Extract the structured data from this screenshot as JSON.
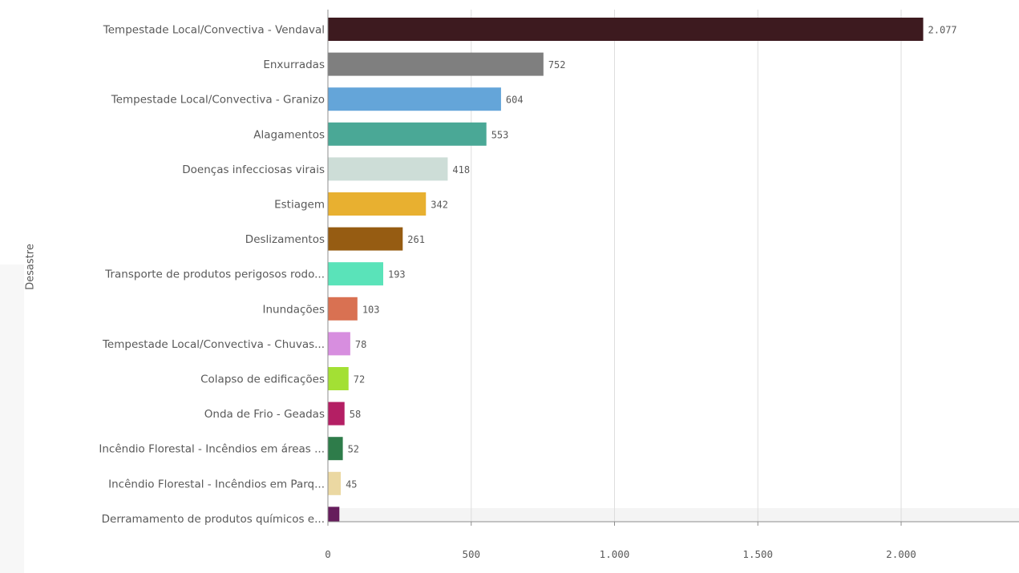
{
  "chart_data": {
    "type": "bar",
    "orientation": "horizontal",
    "ylabel": "Desastre",
    "xlim": [
      0,
      2400
    ],
    "x_ticks": [
      0,
      500,
      1000,
      1500,
      2000
    ],
    "x_tick_labels": [
      "0",
      "500",
      "1.000",
      "1.500",
      "2.000"
    ],
    "grid": true,
    "categories": [
      "Tempestade Local/Convectiva - Vendaval",
      "Enxurradas",
      "Tempestade Local/Convectiva - Granizo",
      "Alagamentos",
      "Doenças infecciosas virais",
      "Estiagem",
      "Deslizamentos",
      "Transporte de produtos perigosos rodo...",
      "Inundações",
      "Tempestade Local/Convectiva - Chuvas...",
      "Colapso de edificações",
      "Onda de Frio - Geadas",
      "Incêndio Florestal - Incêndios em áreas ...",
      "Incêndio Florestal - Incêndios em Parq...",
      "Derramamento de produtos químicos e..."
    ],
    "values": [
      2077,
      752,
      604,
      553,
      418,
      342,
      261,
      193,
      103,
      78,
      72,
      58,
      52,
      45,
      40
    ],
    "value_labels": [
      "2.077",
      "752",
      "604",
      "553",
      "418",
      "342",
      "261",
      "193",
      "103",
      "78",
      "72",
      "58",
      "52",
      "45",
      ""
    ],
    "colors": [
      "#3d1a1f",
      "#7f7f7f",
      "#64a5d9",
      "#4aa896",
      "#cdddd7",
      "#e8b030",
      "#965c12",
      "#5ae3b9",
      "#d97152",
      "#d78edf",
      "#a3e034",
      "#b41f64",
      "#2e7c4a",
      "#ebd8a2",
      "#661d5c"
    ]
  }
}
